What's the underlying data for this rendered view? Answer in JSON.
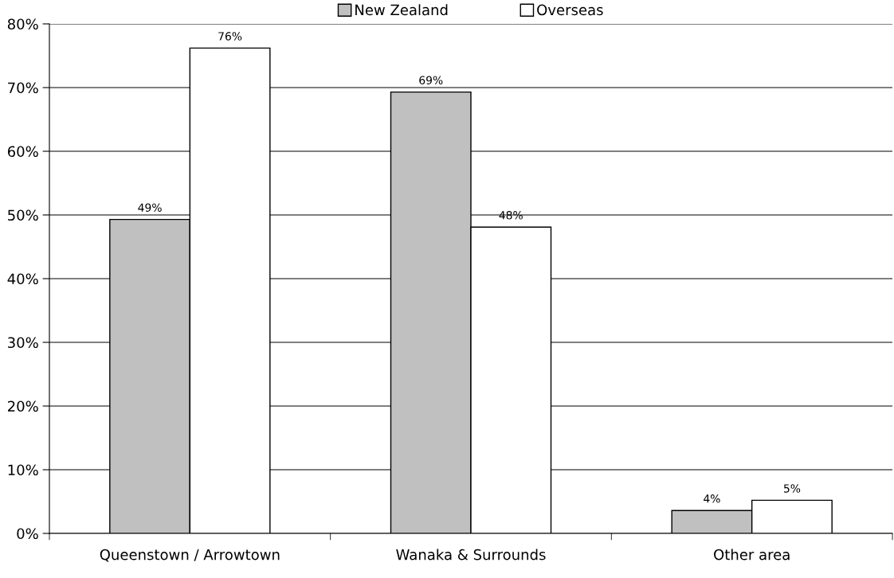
{
  "chart_data": {
    "type": "bar",
    "categories": [
      "Queenstown / Arrowtown",
      "Wanaka & Surrounds",
      "Other area"
    ],
    "series": [
      {
        "name": "New Zealand",
        "color": "#c0c0c0",
        "values": [
          49.3,
          69.3,
          3.6
        ],
        "value_labels": [
          "49%",
          "69%",
          "4%"
        ]
      },
      {
        "name": "Overseas",
        "color": "#ffffff",
        "values": [
          76.2,
          48.1,
          5.2
        ],
        "value_labels": [
          "76%",
          "48%",
          "5%"
        ]
      }
    ],
    "ylim": [
      0,
      80
    ],
    "yticks": [
      {
        "value": 0,
        "label": "0%"
      },
      {
        "value": 10,
        "label": "10%"
      },
      {
        "value": 20,
        "label": "20%"
      },
      {
        "value": 30,
        "label": "30%"
      },
      {
        "value": 40,
        "label": "40%"
      },
      {
        "value": 50,
        "label": "50%"
      },
      {
        "value": 60,
        "label": "60%"
      },
      {
        "value": 70,
        "label": "70%"
      },
      {
        "value": 80,
        "label": "80%"
      }
    ],
    "grid": "y",
    "legend": "top"
  }
}
